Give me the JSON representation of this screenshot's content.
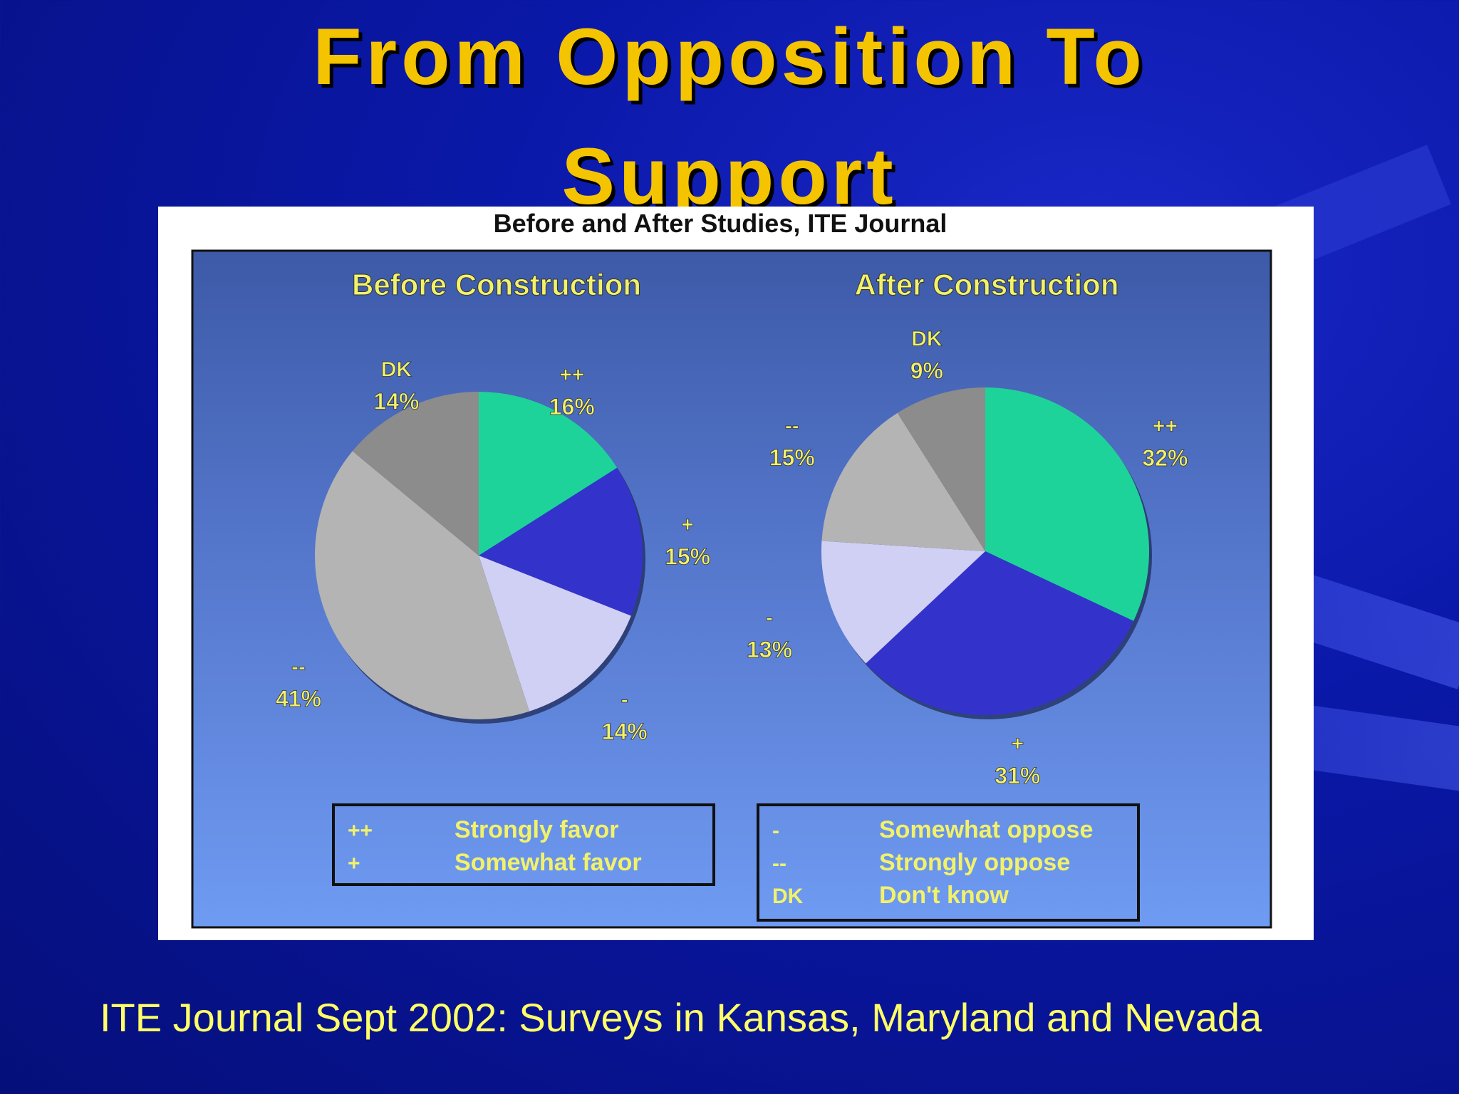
{
  "slide": {
    "title_line1": "From Opposition To",
    "title_line2": "Support",
    "footer": "ITE Journal Sept 2002: Surveys in Kansas, Maryland and Nevada"
  },
  "chart_data": [
    {
      "type": "pie",
      "figure_title": "Before and After Studies, ITE Journal",
      "title": "Before Construction",
      "slices": [
        {
          "code": "++",
          "label": "Strongly favor",
          "value": 16,
          "display": "16%",
          "color": "#1ed39a"
        },
        {
          "code": "+",
          "label": "Somewhat favor",
          "value": 15,
          "display": "15%",
          "color": "#3333cc"
        },
        {
          "code": "-",
          "label": "Somewhat oppose",
          "value": 14,
          "display": "14%",
          "color": "#d0d0f5"
        },
        {
          "code": "--",
          "label": "Strongly oppose",
          "value": 41,
          "display": "41%",
          "color": "#b4b4b4"
        },
        {
          "code": "DK",
          "label": "Don't know",
          "value": 14,
          "display": "14%",
          "color": "#8c8c8c"
        }
      ]
    },
    {
      "type": "pie",
      "title": "After Construction",
      "slices": [
        {
          "code": "++",
          "label": "Strongly favor",
          "value": 32,
          "display": "32%",
          "color": "#1ed39a"
        },
        {
          "code": "+",
          "label": "Somewhat favor",
          "value": 31,
          "display": "31%",
          "color": "#3333cc"
        },
        {
          "code": "-",
          "label": "Somewhat oppose",
          "value": 13,
          "display": "13%",
          "color": "#d0d0f5"
        },
        {
          "code": "--",
          "label": "Strongly oppose",
          "value": 15,
          "display": "15%",
          "color": "#b4b4b4"
        },
        {
          "code": "DK",
          "label": "Don't know",
          "value": 9,
          "display": "9%",
          "color": "#8c8c8c"
        }
      ]
    }
  ],
  "legend": {
    "left": [
      {
        "code": "++",
        "label": "Strongly favor"
      },
      {
        "code": "+",
        "label": "Somewhat favor"
      }
    ],
    "right": [
      {
        "code": "-",
        "label": "Somewhat oppose"
      },
      {
        "code": "--",
        "label": "Strongly oppose"
      },
      {
        "code": "DK",
        "label": "Don't know"
      }
    ]
  },
  "colors": {
    "title": "#f5c400",
    "chart_text": "#f2f26a",
    "footer": "#ffff66"
  }
}
